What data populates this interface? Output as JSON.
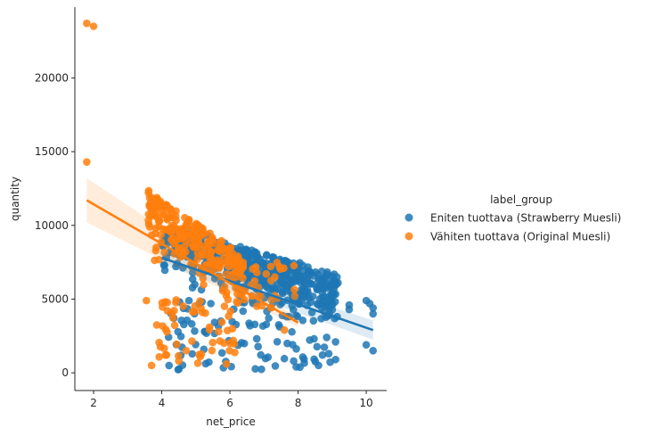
{
  "chart_data": {
    "type": "scatter",
    "xlabel": "net_price",
    "ylabel": "quantity",
    "xlim": [
      1.45,
      10.6
    ],
    "ylim": [
      -1200,
      24800
    ],
    "xticks": [
      2,
      4,
      6,
      8,
      10
    ],
    "yticks": [
      0,
      5000,
      10000,
      15000,
      20000
    ],
    "legend": {
      "title": "label_group",
      "placement": "right"
    },
    "series": [
      {
        "name": "Eniten tuottava (Strawberry Muesli)",
        "color": "#1f77b4",
        "regression": {
          "x": [
            4.0,
            10.2
          ],
          "y": [
            7800,
            2900
          ],
          "ci_start": 450,
          "ci_end": 650
        }
      },
      {
        "name": "Vähiten tuottava (Original Muesli)",
        "color": "#ff7f0e",
        "regression": {
          "x": [
            1.8,
            8.0
          ],
          "y": [
            11700,
            3400
          ],
          "ci_start": 1500,
          "ci_end": 300
        }
      }
    ]
  }
}
